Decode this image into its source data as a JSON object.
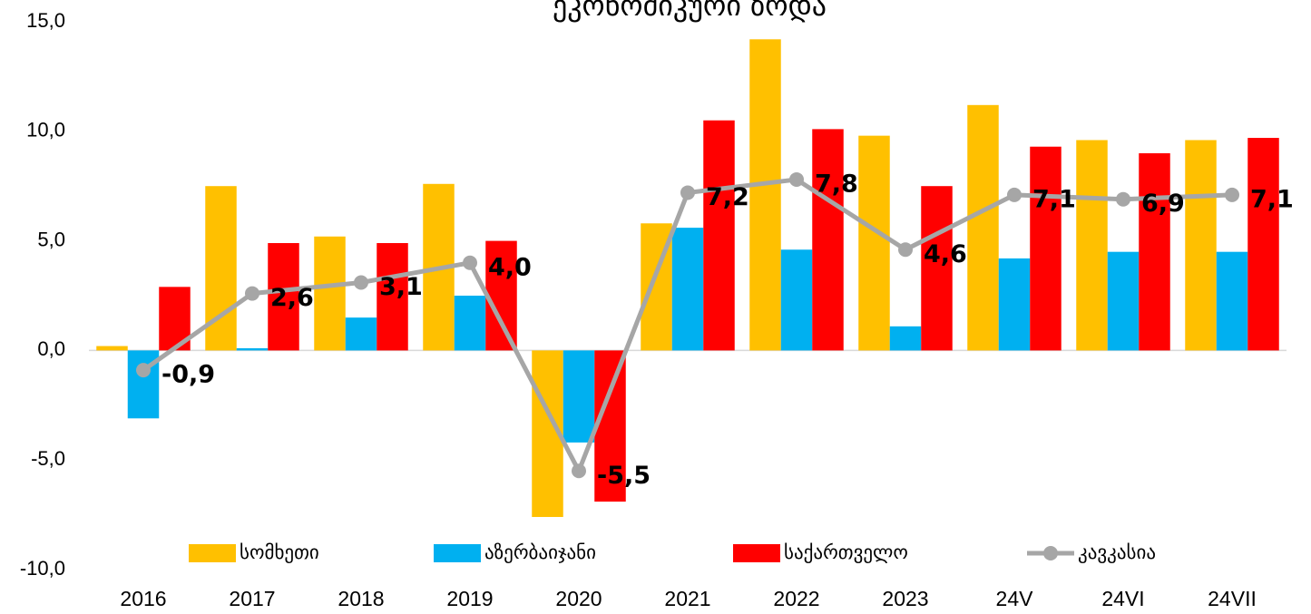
{
  "chart_data": {
    "type": "bar",
    "title": "ეკონომიკური ზრდა",
    "categories": [
      "2016",
      "2017",
      "2018",
      "2019",
      "2020",
      "2021",
      "2022",
      "2023",
      "24V",
      "24VI",
      "24VII"
    ],
    "series": [
      {
        "name": "სომხეთი",
        "color": "#ffc000",
        "values": [
          0.2,
          7.5,
          5.2,
          7.6,
          -7.6,
          5.8,
          14.2,
          9.8,
          11.2,
          9.6,
          9.6
        ]
      },
      {
        "name": "აზერბაიჯანი",
        "color": "#00b0f0",
        "values": [
          -3.1,
          0.1,
          1.5,
          2.5,
          -4.2,
          5.6,
          4.6,
          1.1,
          4.2,
          4.5,
          4.5
        ]
      },
      {
        "name": "საქართველო",
        "color": "#ff0000",
        "values": [
          2.9,
          4.9,
          4.9,
          5.0,
          -6.9,
          10.5,
          10.1,
          7.5,
          9.3,
          9.0,
          9.7
        ]
      },
      {
        "name": "კავკასია",
        "color": "#a6a6a6",
        "type": "line",
        "values": [
          -0.9,
          2.6,
          3.1,
          4.0,
          -5.5,
          7.2,
          7.8,
          4.6,
          7.1,
          6.9,
          7.1
        ],
        "value_labels": [
          "-0,9",
          "2,6",
          "3,1",
          "4,0",
          "-5,5",
          "7,2",
          "7,8",
          "4,6",
          "7,1",
          "6,9",
          "7,1"
        ]
      }
    ],
    "ylim": [
      -10,
      15
    ],
    "yticks": [
      {
        "value": -10,
        "label": "-10,0"
      },
      {
        "value": -5,
        "label": "-5,0"
      },
      {
        "value": 0,
        "label": "0,0"
      },
      {
        "value": 5,
        "label": "5,0"
      },
      {
        "value": 10,
        "label": "10,0"
      },
      {
        "value": 15,
        "label": "15,0"
      }
    ],
    "legend": "bottom"
  }
}
